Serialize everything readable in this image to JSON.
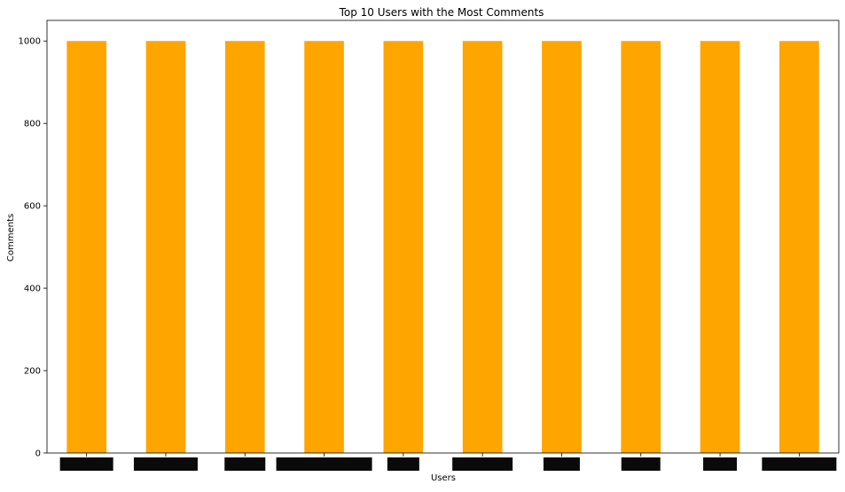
{
  "chart_data": {
    "type": "bar",
    "title": "Top 10 Users with the Most Comments",
    "xlabel": "Users",
    "ylabel": "Comments",
    "categories": [
      "",
      "",
      "",
      "",
      "",
      "",
      "",
      "",
      "",
      ""
    ],
    "category_note": "x tick labels are redacted with black boxes in the original",
    "values": [
      1000,
      1000,
      1000,
      1000,
      1000,
      1000,
      1000,
      1000,
      1000,
      1000
    ],
    "ylim": [
      0,
      1050
    ],
    "yticks": [
      0,
      200,
      400,
      600,
      800,
      1000
    ],
    "grid": false,
    "legend": "none",
    "colors": {
      "bar": "#ffa500",
      "redaction": "#0a0a0a",
      "axis": "#000000"
    }
  }
}
